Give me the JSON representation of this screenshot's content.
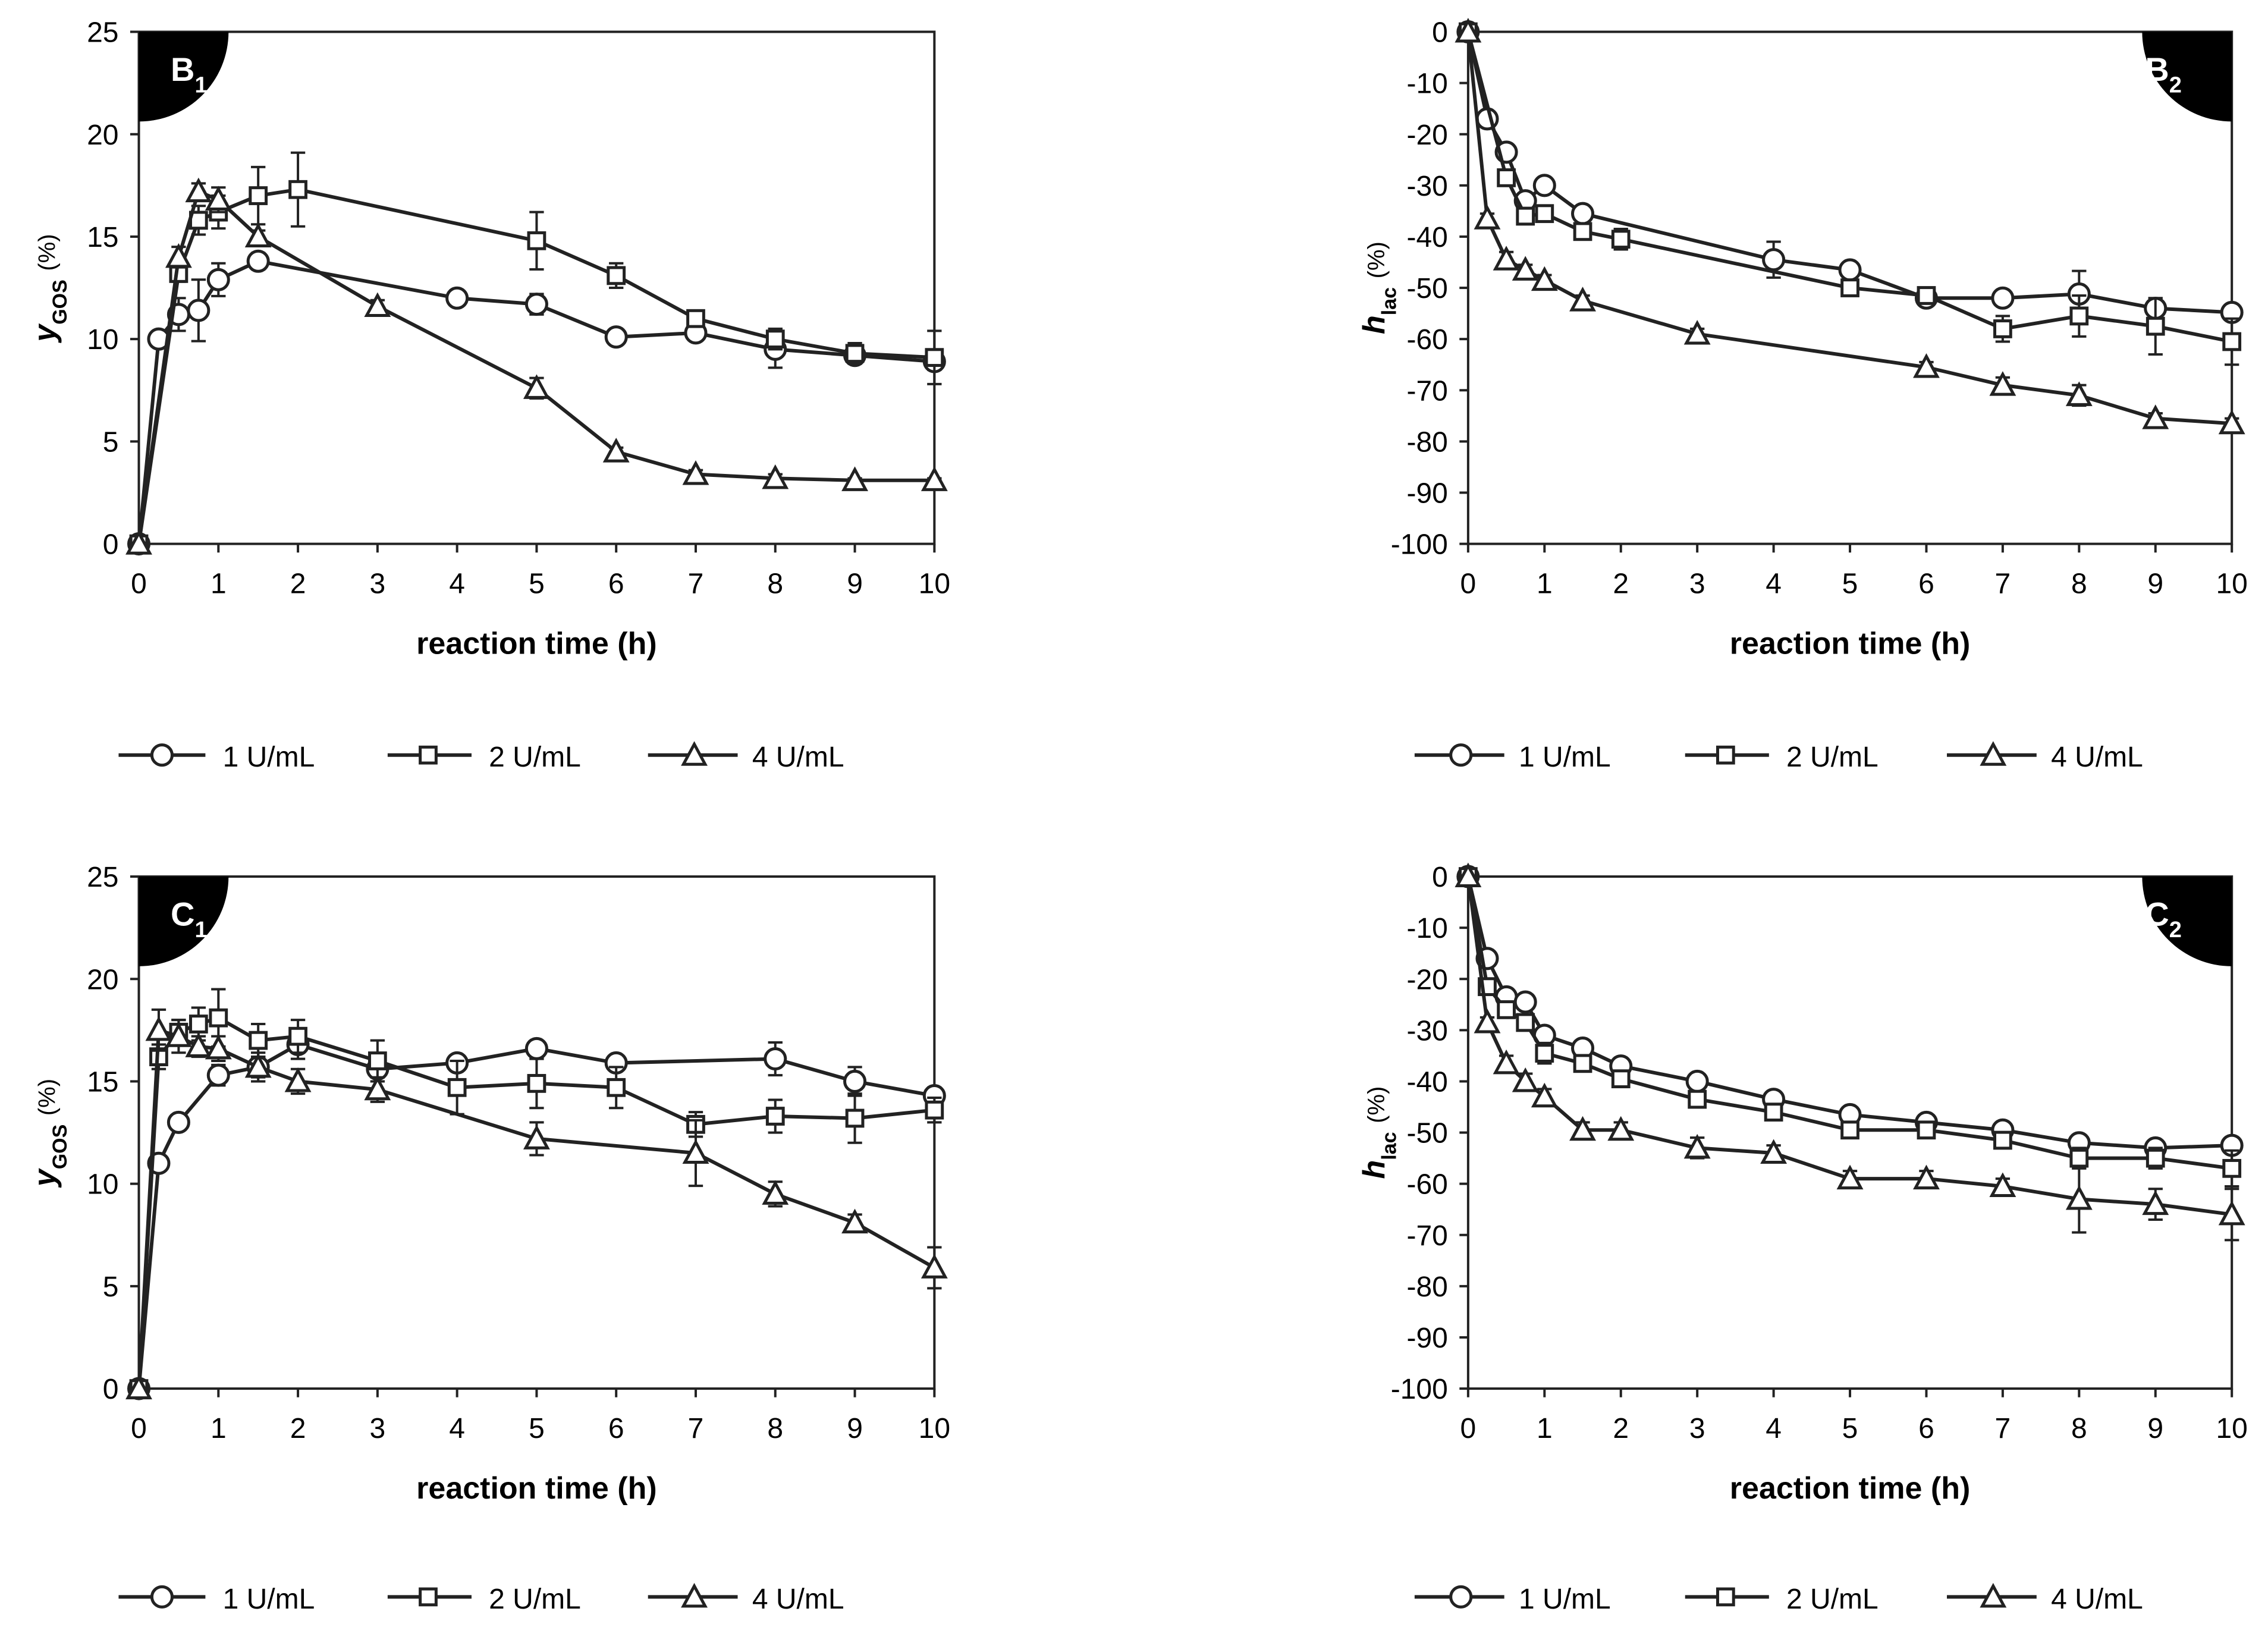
{
  "chart_data": [
    {
      "type": "line",
      "panel_label": "B",
      "panel_subscript": "1",
      "panel_corner": "top-left",
      "xlabel": "reaction time (h)",
      "ylabel_main": "y",
      "ylabel_sub": "GOS",
      "ylabel_unit": "(%)",
      "xlim": [
        0,
        10
      ],
      "ylim": [
        0,
        25
      ],
      "x_ticks": [
        "0",
        "1",
        "2",
        "3",
        "4",
        "5",
        "6",
        "7",
        "8",
        "9",
        "10"
      ],
      "y_ticks": [
        "0",
        "5",
        "10",
        "15",
        "20",
        "25"
      ],
      "legend_position": "bottom",
      "series": [
        {
          "name": "1 U/mL",
          "marker": "circle",
          "x": [
            0,
            0.25,
            0.5,
            0.75,
            1,
            1.5,
            4,
            5,
            6,
            7,
            8,
            9,
            10
          ],
          "y": [
            0,
            10,
            11.2,
            11.4,
            12.9,
            13.8,
            12,
            11.7,
            10.1,
            10.3,
            9.5,
            9.2,
            8.9
          ],
          "err": [
            0,
            0,
            0.8,
            1.5,
            0.8,
            0.4,
            0,
            0.5,
            0.3,
            0.3,
            0.9,
            0.4,
            0.4
          ]
        },
        {
          "name": "2 U/mL",
          "marker": "square",
          "x": [
            0,
            0.5,
            0.75,
            1,
            1.5,
            2,
            5,
            6,
            7,
            8,
            9,
            10
          ],
          "y": [
            0,
            13.2,
            15.8,
            16.2,
            17,
            17.3,
            14.8,
            13.1,
            11,
            10,
            9.3,
            9.1
          ],
          "err": [
            0,
            0.4,
            0.7,
            0.8,
            1.4,
            1.8,
            1.4,
            0.6,
            0.3,
            0.5,
            0.5,
            1.3
          ]
        },
        {
          "name": "4 U/mL",
          "marker": "triangle",
          "x": [
            0,
            0.5,
            0.75,
            1,
            1.5,
            3,
            5,
            6,
            7,
            8,
            9,
            10
          ],
          "y": [
            0,
            14,
            17.2,
            16.8,
            15,
            11.6,
            7.6,
            4.5,
            3.4,
            3.2,
            3.1,
            3.1
          ],
          "err": [
            0,
            0.5,
            0.4,
            0.6,
            0.3,
            0.3,
            0.5,
            0.2,
            0.2,
            0.2,
            0.1,
            0.1
          ]
        }
      ]
    },
    {
      "type": "line",
      "panel_label": "B",
      "panel_subscript": "2",
      "panel_corner": "top-right",
      "xlabel": "reaction time (h)",
      "ylabel_main": "h",
      "ylabel_sub": "lac",
      "ylabel_unit": "(%)",
      "xlim": [
        0,
        10
      ],
      "ylim": [
        -100,
        0
      ],
      "x_ticks": [
        "0",
        "1",
        "2",
        "3",
        "4",
        "5",
        "6",
        "7",
        "8",
        "9",
        "10"
      ],
      "y_ticks": [
        "0",
        "-10",
        "-20",
        "-30",
        "-40",
        "-50",
        "-60",
        "-70",
        "-80",
        "-90",
        "-100"
      ],
      "legend_position": "bottom",
      "series": [
        {
          "name": "1 U/mL",
          "marker": "circle",
          "x": [
            0,
            0.25,
            0.5,
            0.75,
            1,
            1.5,
            4,
            5,
            6,
            7,
            8,
            9,
            10
          ],
          "y": [
            0,
            -17,
            -23.5,
            -33,
            -30,
            -35.5,
            -44.5,
            -46.5,
            -52,
            -52,
            -51.2,
            -54,
            -54.8
          ],
          "err": [
            0,
            1,
            1,
            1,
            1,
            1.5,
            3.5,
            1.5,
            1.5,
            1,
            4.5,
            1.5,
            1.5
          ]
        },
        {
          "name": "2 U/mL",
          "marker": "square",
          "x": [
            0,
            0.5,
            0.75,
            1,
            1.5,
            2,
            5,
            6,
            7,
            8,
            9,
            10
          ],
          "y": [
            0,
            -28.5,
            -36,
            -35.5,
            -39,
            -40.5,
            -50,
            -51.5,
            -58,
            -55.5,
            -57.5,
            -60.5
          ],
          "err": [
            0,
            1,
            1,
            1.5,
            1.5,
            2,
            1.5,
            1.5,
            2.5,
            4,
            5.5,
            4.5
          ]
        },
        {
          "name": "4 U/mL",
          "marker": "triangle",
          "x": [
            0,
            0.25,
            0.5,
            0.75,
            1,
            1.5,
            3,
            6,
            7,
            8,
            9,
            10
          ],
          "y": [
            0,
            -36.5,
            -44.5,
            -46.5,
            -48.5,
            -52.5,
            -59,
            -65.5,
            -69,
            -71,
            -75.5,
            -76.5
          ],
          "err": [
            0,
            1,
            1.5,
            1,
            1,
            1,
            1,
            1,
            1.5,
            2,
            1,
            1
          ]
        }
      ]
    },
    {
      "type": "line",
      "panel_label": "C",
      "panel_subscript": "1",
      "panel_corner": "top-left",
      "xlabel": "reaction time (h)",
      "ylabel_main": "y",
      "ylabel_sub": "GOS",
      "ylabel_unit": "(%)",
      "xlim": [
        0,
        10
      ],
      "ylim": [
        0,
        25
      ],
      "x_ticks": [
        "0",
        "1",
        "2",
        "3",
        "4",
        "5",
        "6",
        "7",
        "8",
        "9",
        "10"
      ],
      "y_ticks": [
        "0",
        "5",
        "10",
        "15",
        "20",
        "25"
      ],
      "legend_position": "bottom",
      "series": [
        {
          "name": "1 U/mL",
          "marker": "circle",
          "x": [
            0,
            0.25,
            0.5,
            1,
            1.5,
            2,
            3,
            4,
            5,
            6,
            8,
            9,
            10
          ],
          "y": [
            0,
            11,
            13,
            15.3,
            15.7,
            16.8,
            15.6,
            15.9,
            16.6,
            15.9,
            16.1,
            15,
            14.3
          ],
          "err": [
            0,
            0,
            0,
            0.5,
            0.5,
            0.7,
            0.4,
            0,
            0.3,
            0,
            0.8,
            0.7,
            0.4
          ]
        },
        {
          "name": "2 U/mL",
          "marker": "square",
          "x": [
            0,
            0.25,
            0.5,
            0.75,
            1,
            1.5,
            2,
            3,
            4,
            5,
            6,
            7,
            8,
            9,
            10
          ],
          "y": [
            0,
            16.2,
            17.4,
            17.8,
            18.1,
            17,
            17.2,
            16,
            14.7,
            14.9,
            14.7,
            12.9,
            13.3,
            13.2,
            13.6
          ],
          "err": [
            0,
            0.6,
            0.6,
            0.8,
            1.4,
            0.8,
            0.8,
            1,
            1.3,
            1.2,
            1,
            0.6,
            0.8,
            1.2,
            0.6
          ]
        },
        {
          "name": "4 U/mL",
          "marker": "triangle",
          "x": [
            0,
            0.25,
            0.5,
            0.75,
            1,
            1.5,
            2,
            3,
            5,
            7,
            8,
            9,
            10
          ],
          "y": [
            0,
            17.5,
            17.2,
            16.7,
            16.6,
            15.7,
            15,
            14.6,
            12.2,
            11.5,
            9.5,
            8.1,
            5.9
          ],
          "err": [
            0,
            1,
            0.8,
            0.5,
            0.6,
            0.7,
            0.6,
            0.6,
            0.8,
            1.6,
            0.6,
            0.4,
            1
          ]
        }
      ]
    },
    {
      "type": "line",
      "panel_label": "C",
      "panel_subscript": "2",
      "panel_corner": "top-right",
      "xlabel": "reaction time (h)",
      "ylabel_main": "h",
      "ylabel_sub": "lac",
      "ylabel_unit": "(%)",
      "xlim": [
        0,
        10
      ],
      "ylim": [
        -100,
        0
      ],
      "x_ticks": [
        "0",
        "1",
        "2",
        "3",
        "4",
        "5",
        "6",
        "7",
        "8",
        "9",
        "10"
      ],
      "y_ticks": [
        "0",
        "-10",
        "-20",
        "-30",
        "-40",
        "-50",
        "-60",
        "-70",
        "-80",
        "-90",
        "-100"
      ],
      "legend_position": "bottom",
      "series": [
        {
          "name": "1 U/mL",
          "marker": "circle",
          "x": [
            0,
            0.25,
            0.5,
            0.75,
            1,
            1.5,
            2,
            3,
            4,
            5,
            6,
            7,
            8,
            9,
            10
          ],
          "y": [
            0,
            -16,
            -23.5,
            -24.5,
            -31,
            -33.5,
            -37,
            -40,
            -43.5,
            -46.5,
            -48,
            -49.5,
            -52,
            -53,
            -52.5
          ],
          "err": [
            0,
            1,
            1,
            1,
            1.5,
            1,
            1,
            1,
            1,
            1,
            1,
            1,
            1.5,
            1.5,
            1.5
          ]
        },
        {
          "name": "2 U/mL",
          "marker": "square",
          "x": [
            0,
            0.25,
            0.5,
            0.75,
            1,
            1.5,
            2,
            3,
            4,
            5,
            6,
            7,
            8,
            9,
            10
          ],
          "y": [
            0,
            -21.5,
            -26,
            -28.5,
            -34.5,
            -36.5,
            -39.5,
            -43.5,
            -46,
            -49.5,
            -49.5,
            -51.5,
            -55,
            -55,
            -57
          ],
          "err": [
            0,
            1,
            1,
            1.5,
            2,
            1.5,
            1.5,
            1.5,
            1.5,
            1,
            1.5,
            1.5,
            2,
            2,
            3.5
          ]
        },
        {
          "name": "4 U/mL",
          "marker": "triangle",
          "x": [
            0,
            0.25,
            0.5,
            0.75,
            1,
            1.5,
            2,
            3,
            4,
            5,
            6,
            7,
            8,
            9,
            10
          ],
          "y": [
            0,
            -28.5,
            -36.5,
            -40,
            -43,
            -49.5,
            -49.5,
            -53,
            -54,
            -59,
            -59,
            -60.5,
            -63,
            -64,
            -66
          ],
          "err": [
            0,
            1,
            1.5,
            1.5,
            1.5,
            1.5,
            1.5,
            2,
            1.5,
            1.5,
            1.5,
            1.5,
            6.5,
            3,
            5
          ]
        }
      ]
    }
  ]
}
